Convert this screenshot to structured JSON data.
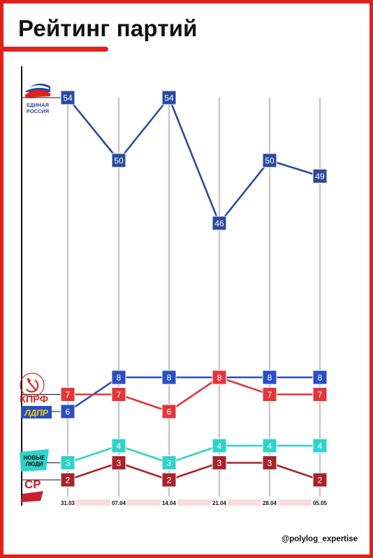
{
  "page": {
    "title": "Рейтинг партий",
    "credit": "@polylog_expertise",
    "colors": {
      "frame": "#e3211b",
      "accent": "#e3211b"
    }
  },
  "logos": {
    "er": {
      "line1": "ЕДИНАЯ",
      "line2": "РОССИЯ",
      "icon": "bear-flag-icon"
    },
    "kprf": {
      "label": "КПРФ",
      "icon": "hammer-sickle-icon"
    },
    "ldpr": {
      "label": "ЛДПР"
    },
    "nl": {
      "line1": "НОВЫЕ",
      "line2": "ЛЮДИ"
    },
    "sr": {
      "label": "СР"
    }
  },
  "chart_data": {
    "type": "line",
    "categories": [
      "31.03",
      "07.04",
      "14.04",
      "21.04",
      "28.04",
      "05.05"
    ],
    "grid": "vertical lines at each date",
    "series": [
      {
        "name": "ЕДИНАЯ РОССИЯ",
        "color": "#2b4a9f",
        "values": [
          54,
          50,
          54,
          46,
          50,
          49
        ]
      },
      {
        "name": "ЛДПР",
        "color": "#2a4ec2",
        "values": [
          6,
          8,
          8,
          8,
          8,
          8
        ]
      },
      {
        "name": "КПРФ",
        "color": "#e2363a",
        "values": [
          7,
          7,
          6,
          8,
          7,
          7
        ]
      },
      {
        "name": "НОВЫЕ ЛЮДИ",
        "color": "#2fd3c7",
        "values": [
          3,
          4,
          3,
          4,
          4,
          4
        ]
      },
      {
        "name": "СР",
        "color": "#a8242a",
        "values": [
          2,
          3,
          2,
          3,
          3,
          2
        ]
      }
    ]
  }
}
